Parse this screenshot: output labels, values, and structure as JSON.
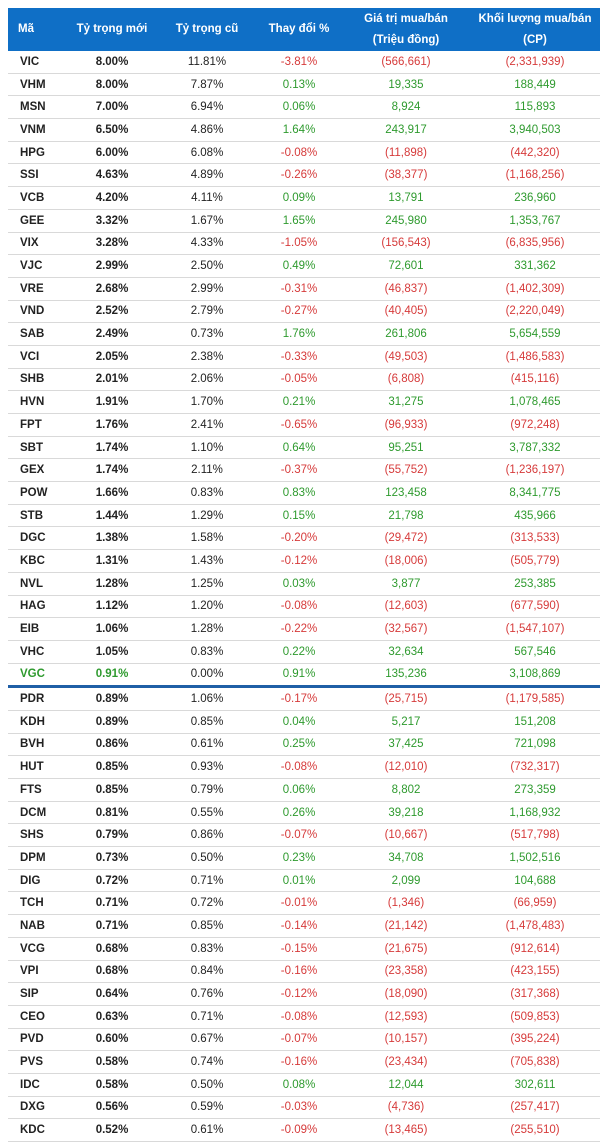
{
  "header": {
    "code": "Mã",
    "new_weight": "Tỷ trọng mới",
    "old_weight": "Tỷ trọng cũ",
    "change": "Thay đổi %",
    "value_line1": "Giá trị mua/bán",
    "value_line2": "(Triệu đồng)",
    "volume_line1": "Khối lượng mua/bán",
    "volume_line2": "(CP)"
  },
  "colors": {
    "header_bg": "#0f6fc6",
    "positive": "#2e9a2e",
    "negative": "#d63a3a",
    "separator": "#1f5fa6"
  },
  "rows": [
    {
      "code": "VIC",
      "new": "8.00%",
      "old": "11.81%",
      "change": "-3.81%",
      "value": "(566,661)",
      "volume": "(2,331,939)",
      "dir": "neg"
    },
    {
      "code": "VHM",
      "new": "8.00%",
      "old": "7.87%",
      "change": "0.13%",
      "value": "19,335",
      "volume": "188,449",
      "dir": "pos"
    },
    {
      "code": "MSN",
      "new": "7.00%",
      "old": "6.94%",
      "change": "0.06%",
      "value": "8,924",
      "volume": "115,893",
      "dir": "pos"
    },
    {
      "code": "VNM",
      "new": "6.50%",
      "old": "4.86%",
      "change": "1.64%",
      "value": "243,917",
      "volume": "3,940,503",
      "dir": "pos"
    },
    {
      "code": "HPG",
      "new": "6.00%",
      "old": "6.08%",
      "change": "-0.08%",
      "value": "(11,898)",
      "volume": "(442,320)",
      "dir": "neg"
    },
    {
      "code": "SSI",
      "new": "4.63%",
      "old": "4.89%",
      "change": "-0.26%",
      "value": "(38,377)",
      "volume": "(1,168,256)",
      "dir": "neg"
    },
    {
      "code": "VCB",
      "new": "4.20%",
      "old": "4.11%",
      "change": "0.09%",
      "value": "13,791",
      "volume": "236,960",
      "dir": "pos"
    },
    {
      "code": "GEE",
      "new": "3.32%",
      "old": "1.67%",
      "change": "1.65%",
      "value": "245,980",
      "volume": "1,353,767",
      "dir": "pos"
    },
    {
      "code": "VIX",
      "new": "3.28%",
      "old": "4.33%",
      "change": "-1.05%",
      "value": "(156,543)",
      "volume": "(6,835,956)",
      "dir": "neg"
    },
    {
      "code": "VJC",
      "new": "2.99%",
      "old": "2.50%",
      "change": "0.49%",
      "value": "72,601",
      "volume": "331,362",
      "dir": "pos"
    },
    {
      "code": "VRE",
      "new": "2.68%",
      "old": "2.99%",
      "change": "-0.31%",
      "value": "(46,837)",
      "volume": "(1,402,309)",
      "dir": "neg"
    },
    {
      "code": "VND",
      "new": "2.52%",
      "old": "2.79%",
      "change": "-0.27%",
      "value": "(40,405)",
      "volume": "(2,220,049)",
      "dir": "neg"
    },
    {
      "code": "SAB",
      "new": "2.49%",
      "old": "0.73%",
      "change": "1.76%",
      "value": "261,806",
      "volume": "5,654,559",
      "dir": "pos"
    },
    {
      "code": "VCI",
      "new": "2.05%",
      "old": "2.38%",
      "change": "-0.33%",
      "value": "(49,503)",
      "volume": "(1,486,583)",
      "dir": "neg"
    },
    {
      "code": "SHB",
      "new": "2.01%",
      "old": "2.06%",
      "change": "-0.05%",
      "value": "(6,808)",
      "volume": "(415,116)",
      "dir": "neg"
    },
    {
      "code": "HVN",
      "new": "1.91%",
      "old": "1.70%",
      "change": "0.21%",
      "value": "31,275",
      "volume": "1,078,465",
      "dir": "pos"
    },
    {
      "code": "FPT",
      "new": "1.76%",
      "old": "2.41%",
      "change": "-0.65%",
      "value": "(96,933)",
      "volume": "(972,248)",
      "dir": "neg"
    },
    {
      "code": "SBT",
      "new": "1.74%",
      "old": "1.10%",
      "change": "0.64%",
      "value": "95,251",
      "volume": "3,787,332",
      "dir": "pos"
    },
    {
      "code": "GEX",
      "new": "1.74%",
      "old": "2.11%",
      "change": "-0.37%",
      "value": "(55,752)",
      "volume": "(1,236,197)",
      "dir": "neg"
    },
    {
      "code": "POW",
      "new": "1.66%",
      "old": "0.83%",
      "change": "0.83%",
      "value": "123,458",
      "volume": "8,341,775",
      "dir": "pos"
    },
    {
      "code": "STB",
      "new": "1.44%",
      "old": "1.29%",
      "change": "0.15%",
      "value": "21,798",
      "volume": "435,966",
      "dir": "pos"
    },
    {
      "code": "DGC",
      "new": "1.38%",
      "old": "1.58%",
      "change": "-0.20%",
      "value": "(29,472)",
      "volume": "(313,533)",
      "dir": "neg"
    },
    {
      "code": "KBC",
      "new": "1.31%",
      "old": "1.43%",
      "change": "-0.12%",
      "value": "(18,006)",
      "volume": "(505,779)",
      "dir": "neg"
    },
    {
      "code": "NVL",
      "new": "1.28%",
      "old": "1.25%",
      "change": "0.03%",
      "value": "3,877",
      "volume": "253,385",
      "dir": "pos"
    },
    {
      "code": "HAG",
      "new": "1.12%",
      "old": "1.20%",
      "change": "-0.08%",
      "value": "(12,603)",
      "volume": "(677,590)",
      "dir": "neg"
    },
    {
      "code": "EIB",
      "new": "1.06%",
      "old": "1.28%",
      "change": "-0.22%",
      "value": "(32,567)",
      "volume": "(1,547,107)",
      "dir": "neg"
    },
    {
      "code": "VHC",
      "new": "1.05%",
      "old": "0.83%",
      "change": "0.22%",
      "value": "32,634",
      "volume": "567,546",
      "dir": "pos"
    },
    {
      "code": "VGC",
      "new": "0.91%",
      "old": "0.00%",
      "change": "0.91%",
      "value": "135,236",
      "volume": "3,108,869",
      "dir": "pos",
      "is_new": true
    },
    {
      "code": "PDR",
      "new": "0.89%",
      "old": "1.06%",
      "change": "-0.17%",
      "value": "(25,715)",
      "volume": "(1,179,585)",
      "dir": "neg"
    },
    {
      "code": "KDH",
      "new": "0.89%",
      "old": "0.85%",
      "change": "0.04%",
      "value": "5,217",
      "volume": "151,208",
      "dir": "pos"
    },
    {
      "code": "BVH",
      "new": "0.86%",
      "old": "0.61%",
      "change": "0.25%",
      "value": "37,425",
      "volume": "721,098",
      "dir": "pos"
    },
    {
      "code": "HUT",
      "new": "0.85%",
      "old": "0.93%",
      "change": "-0.08%",
      "value": "(12,010)",
      "volume": "(732,317)",
      "dir": "neg"
    },
    {
      "code": "FTS",
      "new": "0.85%",
      "old": "0.79%",
      "change": "0.06%",
      "value": "8,802",
      "volume": "273,359",
      "dir": "pos"
    },
    {
      "code": "DCM",
      "new": "0.81%",
      "old": "0.55%",
      "change": "0.26%",
      "value": "39,218",
      "volume": "1,168,932",
      "dir": "pos"
    },
    {
      "code": "SHS",
      "new": "0.79%",
      "old": "0.86%",
      "change": "-0.07%",
      "value": "(10,667)",
      "volume": "(517,798)",
      "dir": "neg"
    },
    {
      "code": "DPM",
      "new": "0.73%",
      "old": "0.50%",
      "change": "0.23%",
      "value": "34,708",
      "volume": "1,502,516",
      "dir": "pos"
    },
    {
      "code": "DIG",
      "new": "0.72%",
      "old": "0.71%",
      "change": "0.01%",
      "value": "2,099",
      "volume": "104,688",
      "dir": "pos"
    },
    {
      "code": "TCH",
      "new": "0.71%",
      "old": "0.72%",
      "change": "-0.01%",
      "value": "(1,346)",
      "volume": "(66,959)",
      "dir": "neg"
    },
    {
      "code": "NAB",
      "new": "0.71%",
      "old": "0.85%",
      "change": "-0.14%",
      "value": "(21,142)",
      "volume": "(1,478,483)",
      "dir": "neg"
    },
    {
      "code": "VCG",
      "new": "0.68%",
      "old": "0.83%",
      "change": "-0.15%",
      "value": "(21,675)",
      "volume": "(912,614)",
      "dir": "neg"
    },
    {
      "code": "VPI",
      "new": "0.68%",
      "old": "0.84%",
      "change": "-0.16%",
      "value": "(23,358)",
      "volume": "(423,155)",
      "dir": "neg"
    },
    {
      "code": "SIP",
      "new": "0.64%",
      "old": "0.76%",
      "change": "-0.12%",
      "value": "(18,090)",
      "volume": "(317,368)",
      "dir": "neg"
    },
    {
      "code": "CEO",
      "new": "0.63%",
      "old": "0.71%",
      "change": "-0.08%",
      "value": "(12,593)",
      "volume": "(509,853)",
      "dir": "neg"
    },
    {
      "code": "PVD",
      "new": "0.60%",
      "old": "0.67%",
      "change": "-0.07%",
      "value": "(10,157)",
      "volume": "(395,224)",
      "dir": "neg"
    },
    {
      "code": "PVS",
      "new": "0.58%",
      "old": "0.74%",
      "change": "-0.16%",
      "value": "(23,434)",
      "volume": "(705,838)",
      "dir": "neg"
    },
    {
      "code": "IDC",
      "new": "0.58%",
      "old": "0.50%",
      "change": "0.08%",
      "value": "12,044",
      "volume": "302,611",
      "dir": "pos"
    },
    {
      "code": "DXG",
      "new": "0.56%",
      "old": "0.59%",
      "change": "-0.03%",
      "value": "(4,736)",
      "volume": "(257,417)",
      "dir": "neg"
    },
    {
      "code": "KDC",
      "new": "0.52%",
      "old": "0.61%",
      "change": "-0.09%",
      "value": "(13,465)",
      "volume": "(255,510)",
      "dir": "neg"
    }
  ]
}
